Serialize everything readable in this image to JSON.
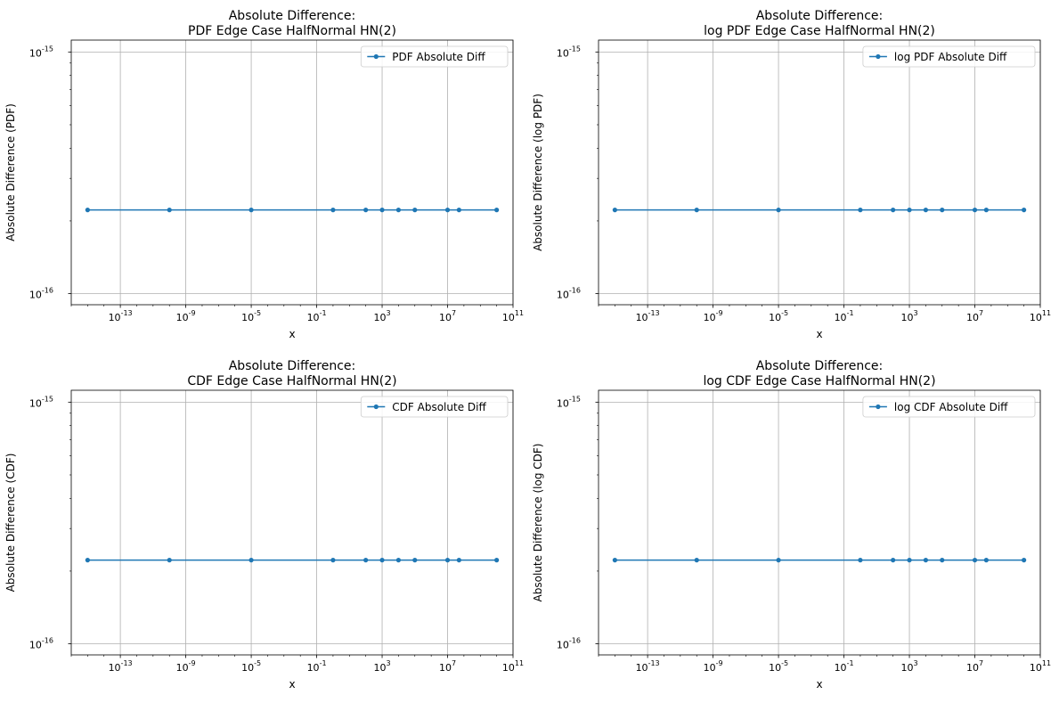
{
  "chart_data": [
    {
      "type": "line",
      "title": [
        "Absolute Difference:",
        "PDF Edge Case HalfNormal HN(2)"
      ],
      "xlabel": "x",
      "ylabel": "Absolute Difference (PDF)",
      "xscale": "log",
      "yscale": "log",
      "xlim": [
        1e-16,
        100000000000.0
      ],
      "ylim": [
        9e-17,
        1.12e-15
      ],
      "xticks": [
        -13,
        -9,
        -5,
        -1,
        3,
        7,
        11
      ],
      "yticks": [
        -16,
        -15
      ],
      "grid": true,
      "legend_position": "upper right",
      "color": "#1f77b4",
      "series": [
        {
          "name": "PDF Absolute Diff",
          "x": [
            1e-15,
            1e-10,
            1e-05,
            1,
            100,
            1000,
            10000,
            100000,
            10000000,
            50000000,
            10000000000
          ],
          "y": [
            2.2204e-16,
            2.2204e-16,
            2.2204e-16,
            2.2204e-16,
            2.2204e-16,
            2.2204e-16,
            2.2204e-16,
            2.2204e-16,
            2.2204e-16,
            2.2204e-16,
            2.2204e-16
          ]
        }
      ]
    },
    {
      "type": "line",
      "title": [
        "Absolute Difference:",
        "log PDF Edge Case HalfNormal HN(2)"
      ],
      "xlabel": "x",
      "ylabel": "Absolute Difference (log PDF)",
      "xscale": "log",
      "yscale": "log",
      "xlim": [
        1e-16,
        100000000000.0
      ],
      "ylim": [
        9e-17,
        1.12e-15
      ],
      "xticks": [
        -13,
        -9,
        -5,
        -1,
        3,
        7,
        11
      ],
      "yticks": [
        -16,
        -15
      ],
      "grid": true,
      "legend_position": "upper right",
      "color": "#1f77b4",
      "series": [
        {
          "name": "log PDF Absolute Diff",
          "x": [
            1e-15,
            1e-10,
            1e-05,
            1,
            100,
            1000,
            10000,
            100000,
            10000000,
            50000000,
            10000000000
          ],
          "y": [
            2.2204e-16,
            2.2204e-16,
            2.2204e-16,
            2.2204e-16,
            2.2204e-16,
            2.2204e-16,
            2.2204e-16,
            2.2204e-16,
            2.2204e-16,
            2.2204e-16,
            2.2204e-16
          ]
        }
      ]
    },
    {
      "type": "line",
      "title": [
        "Absolute Difference:",
        "CDF Edge Case HalfNormal HN(2)"
      ],
      "xlabel": "x",
      "ylabel": "Absolute Difference (CDF)",
      "xscale": "log",
      "yscale": "log",
      "xlim": [
        1e-16,
        100000000000.0
      ],
      "ylim": [
        9e-17,
        1.12e-15
      ],
      "xticks": [
        -13,
        -9,
        -5,
        -1,
        3,
        7,
        11
      ],
      "yticks": [
        -16,
        -15
      ],
      "grid": true,
      "legend_position": "upper right",
      "color": "#1f77b4",
      "series": [
        {
          "name": "CDF Absolute Diff",
          "x": [
            1e-15,
            1e-10,
            1e-05,
            1,
            100,
            1000,
            10000,
            100000,
            10000000,
            50000000,
            10000000000
          ],
          "y": [
            2.2204e-16,
            2.2204e-16,
            2.2204e-16,
            2.2204e-16,
            2.2204e-16,
            2.2204e-16,
            2.2204e-16,
            2.2204e-16,
            2.2204e-16,
            2.2204e-16,
            2.2204e-16
          ]
        }
      ]
    },
    {
      "type": "line",
      "title": [
        "Absolute Difference:",
        "log CDF Edge Case HalfNormal HN(2)"
      ],
      "xlabel": "x",
      "ylabel": "Absolute Difference (log CDF)",
      "xscale": "log",
      "yscale": "log",
      "xlim": [
        1e-16,
        100000000000.0
      ],
      "ylim": [
        9e-17,
        1.12e-15
      ],
      "xticks": [
        -13,
        -9,
        -5,
        -1,
        3,
        7,
        11
      ],
      "yticks": [
        -16,
        -15
      ],
      "grid": true,
      "legend_position": "upper right",
      "color": "#1f77b4",
      "series": [
        {
          "name": "log CDF Absolute Diff",
          "x": [
            1e-15,
            1e-10,
            1e-05,
            1,
            100,
            1000,
            10000,
            100000,
            10000000,
            50000000,
            10000000000
          ],
          "y": [
            2.2204e-16,
            2.2204e-16,
            2.2204e-16,
            2.2204e-16,
            2.2204e-16,
            2.2204e-16,
            2.2204e-16,
            2.2204e-16,
            2.2204e-16,
            2.2204e-16,
            2.2204e-16
          ]
        }
      ]
    }
  ]
}
